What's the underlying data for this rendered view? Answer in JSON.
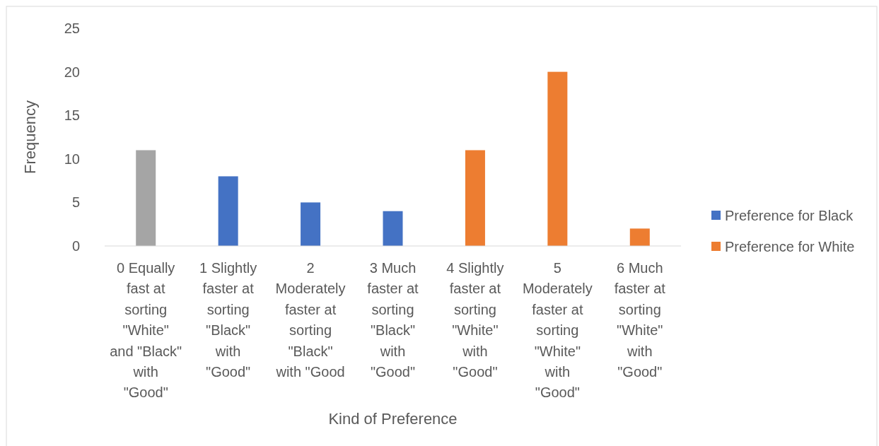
{
  "chart_data": {
    "type": "bar",
    "xlabel": "Kind of Preference",
    "ylabel": "Frequency",
    "categories": [
      "0 Equally fast at sorting \"White\" and \"Black\" with \"Good\"",
      "1 Slightly faster at sorting \"Black\" with \"Good\"",
      "2 Moderately faster at sorting \"Black\" with \"Good",
      "3 Much faster at sorting \"Black\" with \"Good\"",
      "4 Slightly faster at sorting \"White\" with \"Good\"",
      "5 Moderately faster at sorting \"White\" with \"Good\"",
      "6 Much faster at sorting \"White\" with \"Good\""
    ],
    "series": [
      {
        "color": "#a5a5a5",
        "values": [
          11,
          null,
          null,
          null,
          null,
          null,
          null
        ]
      },
      {
        "name": "Preference for Black",
        "color": "#4472c4",
        "values": [
          null,
          8,
          5,
          4,
          null,
          null,
          null
        ]
      },
      {
        "name": "Preference for White",
        "color": "#ed7d31",
        "values": [
          null,
          null,
          null,
          null,
          11,
          20,
          2
        ]
      }
    ],
    "ylim": [
      0,
      25
    ],
    "yticks": [
      0,
      5,
      10,
      15,
      20,
      25
    ],
    "grid": false,
    "legend": "right"
  }
}
